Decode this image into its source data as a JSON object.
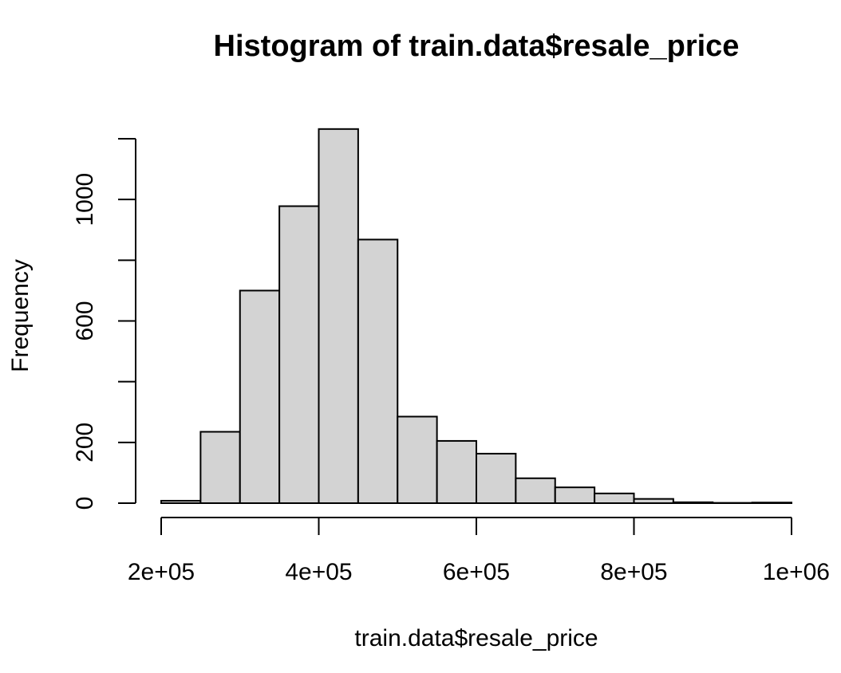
{
  "chart_data": {
    "type": "bar",
    "subtype": "histogram",
    "title": "Histogram of train.data$resale_price",
    "xlabel": "train.data$resale_price",
    "ylabel": "Frequency",
    "xlim": [
      200000,
      1000000
    ],
    "ylim": [
      0,
      1200
    ],
    "x_ticks": [
      {
        "value": 200000,
        "label": "2e+05"
      },
      {
        "value": 400000,
        "label": "4e+05"
      },
      {
        "value": 600000,
        "label": "6e+05"
      },
      {
        "value": 800000,
        "label": "8e+05"
      },
      {
        "value": 1000000,
        "label": "1e+06"
      }
    ],
    "y_ticks": [
      {
        "value": 0,
        "label": "0"
      },
      {
        "value": 200,
        "label": "200"
      },
      {
        "value": 400,
        "label": ""
      },
      {
        "value": 600,
        "label": "600"
      },
      {
        "value": 800,
        "label": ""
      },
      {
        "value": 1000,
        "label": "1000"
      },
      {
        "value": 1200,
        "label": ""
      }
    ],
    "bins": [
      {
        "start": 200000,
        "end": 250000,
        "count": 8
      },
      {
        "start": 250000,
        "end": 300000,
        "count": 235
      },
      {
        "start": 300000,
        "end": 350000,
        "count": 700
      },
      {
        "start": 350000,
        "end": 400000,
        "count": 978
      },
      {
        "start": 400000,
        "end": 450000,
        "count": 1232
      },
      {
        "start": 450000,
        "end": 500000,
        "count": 868
      },
      {
        "start": 500000,
        "end": 550000,
        "count": 285
      },
      {
        "start": 550000,
        "end": 600000,
        "count": 205
      },
      {
        "start": 600000,
        "end": 650000,
        "count": 163
      },
      {
        "start": 650000,
        "end": 700000,
        "count": 82
      },
      {
        "start": 700000,
        "end": 750000,
        "count": 52
      },
      {
        "start": 750000,
        "end": 800000,
        "count": 32
      },
      {
        "start": 800000,
        "end": 850000,
        "count": 14
      },
      {
        "start": 850000,
        "end": 900000,
        "count": 3
      },
      {
        "start": 900000,
        "end": 950000,
        "count": 1
      },
      {
        "start": 950000,
        "end": 1000000,
        "count": 2
      }
    ],
    "grid": false,
    "bar_fill": "#d3d3d3",
    "bar_stroke": "#000000"
  }
}
